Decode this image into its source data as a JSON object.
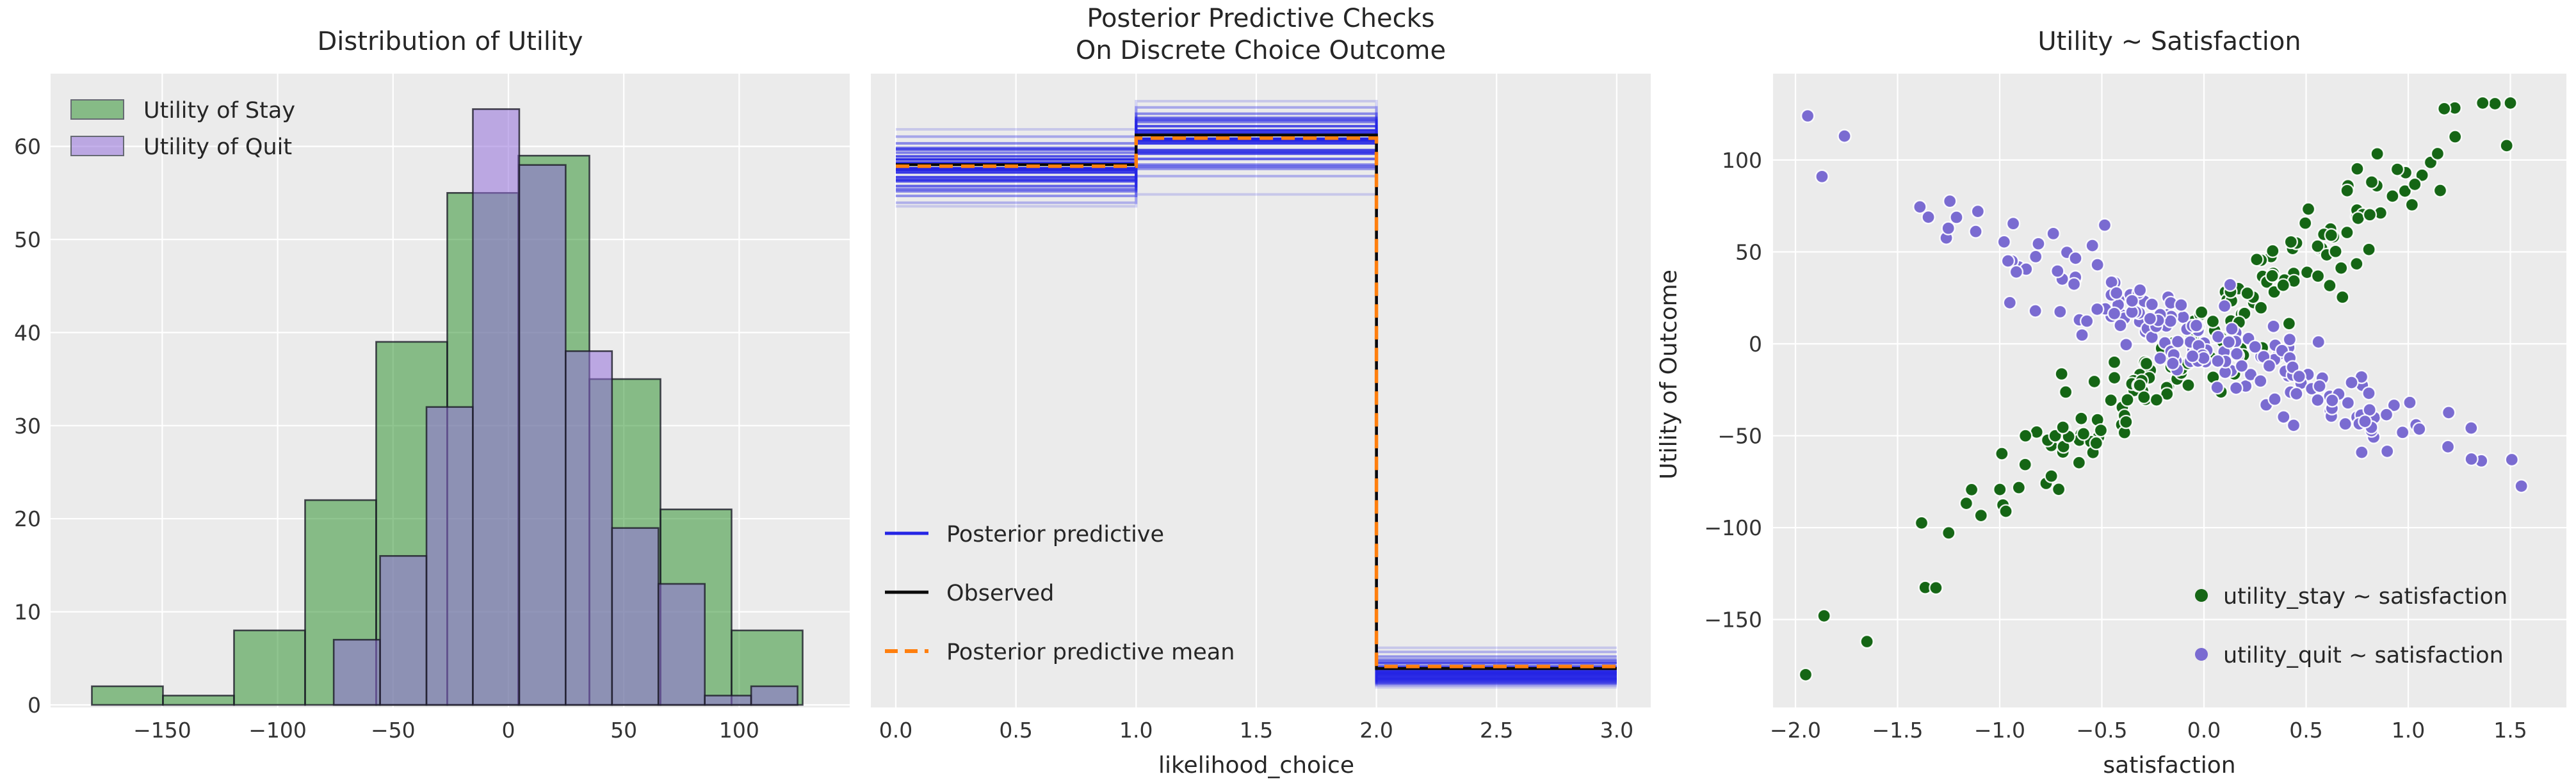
{
  "figure_title": "",
  "style": {
    "plot_bg": "#ebebeb",
    "grid_color": "#ffffff",
    "text_color": "#262626",
    "tick_color": "#333333",
    "hist_edge_color": "rgba(28,28,40,0.8)",
    "scatter_point_edge": "#ffffff"
  },
  "chart_data": [
    {
      "type": "histogram",
      "title": "Distribution of Utility",
      "xlabel": "",
      "ylabel": "",
      "xticks": [
        -150,
        -100,
        -50,
        0,
        50,
        100
      ],
      "yticks": [
        0,
        10,
        20,
        30,
        40,
        50,
        60
      ],
      "xlim": [
        -198,
        148
      ],
      "ylim": [
        0,
        67.8
      ],
      "grid": true,
      "legend_position": "upper left",
      "series": [
        {
          "name": "Utility of Stay",
          "color": "#228B22",
          "fill_alpha": 0.5,
          "bin_start": -180.5,
          "bin_width": 30.8,
          "counts": [
            2,
            1,
            8,
            22,
            39,
            55,
            59,
            35,
            21,
            8
          ]
        },
        {
          "name": "Utility of Quit",
          "color": "#9370DB",
          "fill_alpha": 0.55,
          "bin_start": -75.7,
          "bin_width": 20.1,
          "counts": [
            7,
            16,
            32,
            64,
            58,
            38,
            19,
            13,
            1,
            2
          ]
        }
      ]
    },
    {
      "type": "line",
      "title_line1": "Posterior Predictive Checks",
      "title_line2": "On Discrete Choice Outcome",
      "xlabel": "likelihood_choice",
      "ylabel": "",
      "xticks": [
        0.0,
        0.5,
        1.0,
        1.5,
        2.0,
        2.5,
        3.0
      ],
      "x_steps": [
        0,
        1,
        2,
        3
      ],
      "grid": "vertical-only",
      "legend": [
        "Posterior predictive",
        "Observed",
        "Posterior predictive mean"
      ],
      "colors": {
        "posterior_predictive": "#2525e4",
        "observed": "#0a0a0a",
        "mean": "#ff7f0e"
      },
      "observed": [
        102,
        107.7,
        5.2
      ],
      "posterior_predictive_mean": [
        101.7,
        107.1,
        5.6
      ],
      "posterior_predictive_samples": [
        [
          103.0,
          108.6,
          3.3,
          0.95
        ],
        [
          99.6,
          104.8,
          5.1,
          0.85
        ],
        [
          104.3,
          110.2,
          2.7,
          0.55
        ],
        [
          97.9,
          103.1,
          6.2,
          0.7
        ],
        [
          101.3,
          107.0,
          4.2,
          1.0
        ],
        [
          96.0,
          101.2,
          7.5,
          0.45
        ],
        [
          106.1,
          111.8,
          2.3,
          0.5
        ],
        [
          100.5,
          106.1,
          4.7,
          0.9
        ],
        [
          98.8,
          104.1,
          5.6,
          0.75
        ],
        [
          103.6,
          109.4,
          3.1,
          0.8
        ],
        [
          94.7,
          99.8,
          8.4,
          0.3
        ],
        [
          107.4,
          113.0,
          2.0,
          0.35
        ],
        [
          102.0,
          107.7,
          3.9,
          0.95
        ],
        [
          96.9,
          102.0,
          6.9,
          0.55
        ],
        [
          105.2,
          111.0,
          2.5,
          0.65
        ],
        [
          99.1,
          104.4,
          5.3,
          0.85
        ],
        [
          108.8,
          114.2,
          1.6,
          0.18
        ],
        [
          102.4,
          108.1,
          3.6,
          0.9
        ],
        [
          97.3,
          101.6,
          6.5,
          0.6
        ],
        [
          101.0,
          106.6,
          4.5,
          1.0
        ],
        [
          94.0,
          96.3,
          9.2,
          0.18
        ],
        [
          104.9,
          110.6,
          2.9,
          0.75
        ]
      ]
    },
    {
      "type": "scatter",
      "title": "Utility ~ Satisfaction",
      "xlabel": "satisfaction",
      "ylabel": "Utility of Outcome",
      "xticks": [
        -2.0,
        -1.5,
        -1.0,
        -0.5,
        0.0,
        0.5,
        1.0,
        1.5
      ],
      "yticks": [
        100,
        50,
        0,
        -50,
        -100,
        -150
      ],
      "grid": true,
      "legend_position": "lower right",
      "series": [
        {
          "name": "utility_stay ~ satisfaction",
          "color": "#156615",
          "trend": {
            "slope": 85,
            "intercept": 3
          },
          "noise_sd": 13,
          "x_center": 0.05,
          "x_sd": 0.62,
          "x_range": [
            -1.4,
            1.58
          ],
          "y_clamp": [
            -182,
            131
          ],
          "n": 190,
          "seed": 20,
          "outliers": [
            [
              -1.95,
              -180
            ],
            [
              -1.86,
              -148
            ],
            [
              -1.65,
              -162
            ]
          ]
        },
        {
          "name": "utility_quit ~ satisfaction",
          "color": "#7a6bd1",
          "trend": {
            "slope": -48,
            "intercept": 2
          },
          "noise_sd": 12,
          "x_center": 0.05,
          "x_sd": 0.62,
          "x_range": [
            -1.4,
            1.58
          ],
          "y_clamp": [
            -182,
            131
          ],
          "n": 190,
          "seed": 7,
          "outliers": [
            [
              -1.94,
              124
            ],
            [
              -1.87,
              91
            ],
            [
              -1.76,
              113
            ]
          ]
        }
      ]
    }
  ]
}
